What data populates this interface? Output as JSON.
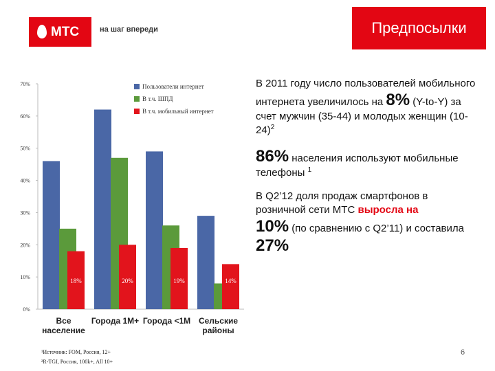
{
  "header": {
    "logo": "МТС",
    "slogan": "на шаг впереди",
    "title": "Предпосылки"
  },
  "chart_data": {
    "type": "bar",
    "categories": [
      "Все население",
      "Города 1М+",
      "Города <1М",
      "Сельские районы"
    ],
    "series": [
      {
        "name": "Пользователи интернет",
        "color": "#4a67a6",
        "values": [
          46,
          62,
          49,
          29
        ]
      },
      {
        "name": "В т.ч. ШПД",
        "color": "#5b9a3b",
        "values": [
          25,
          47,
          26,
          8
        ]
      },
      {
        "name": "В т.ч. мобильный интернет",
        "color": "#e2141c",
        "values": [
          18,
          20,
          19,
          14
        ],
        "value_labels": [
          "18%",
          "20%",
          "19%",
          "14%"
        ]
      }
    ],
    "ylim": [
      0,
      70
    ],
    "yticks": [
      {
        "value": 0,
        "label": "0%"
      },
      {
        "value": 10,
        "label": "10%"
      },
      {
        "value": 20,
        "label": "20%"
      },
      {
        "value": 30,
        "label": "30%"
      },
      {
        "value": 40,
        "label": "40%"
      },
      {
        "value": 50,
        "label": "50%"
      },
      {
        "value": 60,
        "label": "60%"
      },
      {
        "value": 70,
        "label": "70%"
      }
    ],
    "grid": false,
    "legend": "top-left"
  },
  "text": {
    "paragraphs": [
      [
        {
          "text": "В 2011 году число пользователей мобильного интернета увеличилось на ",
          "style": "normal"
        },
        {
          "text": "8%",
          "style": "big"
        },
        {
          "text": " (Y-to-Y) за счет мужчин (35-44) и молодых женщин (10-24)",
          "style": "normal"
        },
        {
          "text": "2",
          "style": "sup"
        }
      ],
      [
        {
          "text": "86%",
          "style": "big"
        },
        {
          "text": " населения используют мобильные телефоны ",
          "style": "normal"
        },
        {
          "text": "1",
          "style": "sup"
        }
      ],
      [
        {
          "text": "В Q2’12 доля продаж смартфонов в розничной сети МТС ",
          "style": "normal"
        },
        {
          "text": "выросла на",
          "style": "accent"
        },
        {
          "text": "10%",
          "style": "big"
        },
        {
          "text": " (по сравнению с Q2’11) и составила ",
          "style": "normal"
        },
        {
          "text": "27%",
          "style": "big"
        }
      ]
    ]
  },
  "footnotes": [
    "¹Источник: FOM, Россия, 12+",
    "²R-TGI, Россия, 100k+, All 10+"
  ],
  "page_number": "6"
}
